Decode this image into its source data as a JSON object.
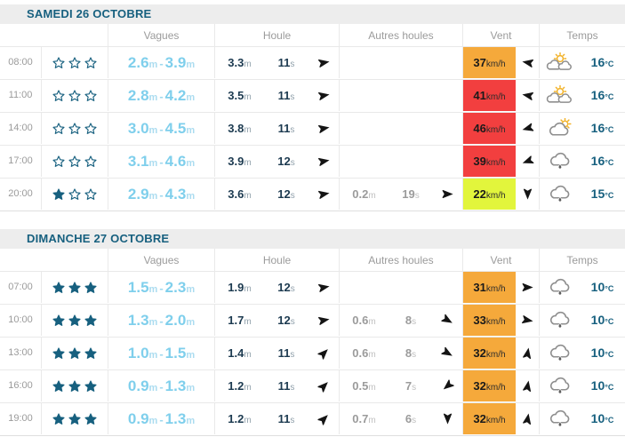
{
  "columns": {
    "vagues": "Vagues",
    "houle": "Houle",
    "autres_houles": "Autres houles",
    "vent": "Vent",
    "temps": "Temps"
  },
  "units": {
    "height": "m",
    "period": "s",
    "speed": "km/h",
    "temperature": "°C"
  },
  "colors": {
    "accent_teal": "#17607F",
    "wave_blue": "#7FCFEC",
    "vent_orange": "#F5A93B",
    "vent_red": "#F23F3F",
    "vent_yellow": "#E2F53C"
  },
  "stars_total": 3,
  "sections": [
    {
      "title": "SAMEDI 26 OCTOBRE",
      "rows": [
        {
          "time": "08:00",
          "stars_filled": 0,
          "vagues": {
            "min": "2.6",
            "max": "3.9"
          },
          "houle": {
            "height": "3.3",
            "period": "11",
            "direction_deg": 80
          },
          "autres_houles": null,
          "vent": {
            "speed": "37",
            "level": "orange",
            "direction_deg": 280
          },
          "temps": {
            "weather": "partly-sunny",
            "temperature": "16"
          }
        },
        {
          "time": "11:00",
          "stars_filled": 0,
          "vagues": {
            "min": "2.8",
            "max": "4.2"
          },
          "houle": {
            "height": "3.5",
            "period": "11",
            "direction_deg": 80
          },
          "autres_houles": null,
          "vent": {
            "speed": "41",
            "level": "red",
            "direction_deg": 280
          },
          "temps": {
            "weather": "partly-sunny",
            "temperature": "16"
          }
        },
        {
          "time": "14:00",
          "stars_filled": 0,
          "vagues": {
            "min": "3.0",
            "max": "4.5"
          },
          "houle": {
            "height": "3.8",
            "period": "11",
            "direction_deg": 80
          },
          "autres_houles": null,
          "vent": {
            "speed": "46",
            "level": "red",
            "direction_deg": 255
          },
          "temps": {
            "weather": "sun-behind-cloud",
            "temperature": "16"
          }
        },
        {
          "time": "17:00",
          "stars_filled": 0,
          "vagues": {
            "min": "3.1",
            "max": "4.6"
          },
          "houle": {
            "height": "3.9",
            "period": "12",
            "direction_deg": 80
          },
          "autres_houles": null,
          "vent": {
            "speed": "39",
            "level": "red",
            "direction_deg": 250
          },
          "temps": {
            "weather": "rain",
            "temperature": "16"
          }
        },
        {
          "time": "20:00",
          "stars_filled": 1,
          "vagues": {
            "min": "2.9",
            "max": "4.3"
          },
          "houle": {
            "height": "3.6",
            "period": "12",
            "direction_deg": 80
          },
          "autres_houles": {
            "height": "0.2",
            "period": "19",
            "direction_deg": 90
          },
          "vent": {
            "speed": "22",
            "level": "yellow",
            "direction_deg": 180
          },
          "temps": {
            "weather": "rain",
            "temperature": "15"
          }
        }
      ]
    },
    {
      "title": "DIMANCHE 27 OCTOBRE",
      "rows": [
        {
          "time": "07:00",
          "stars_filled": 3,
          "vagues": {
            "min": "1.5",
            "max": "2.3"
          },
          "houle": {
            "height": "1.9",
            "period": "12",
            "direction_deg": 80
          },
          "autres_houles": null,
          "vent": {
            "speed": "31",
            "level": "orange",
            "direction_deg": 90
          },
          "temps": {
            "weather": "rain",
            "temperature": "10"
          }
        },
        {
          "time": "10:00",
          "stars_filled": 3,
          "vagues": {
            "min": "1.3",
            "max": "2.0"
          },
          "houle": {
            "height": "1.7",
            "period": "12",
            "direction_deg": 80
          },
          "autres_houles": {
            "height": "0.6",
            "period": "8",
            "direction_deg": 120
          },
          "vent": {
            "speed": "33",
            "level": "orange",
            "direction_deg": 100
          },
          "temps": {
            "weather": "rain",
            "temperature": "10"
          }
        },
        {
          "time": "13:00",
          "stars_filled": 3,
          "vagues": {
            "min": "1.0",
            "max": "1.5"
          },
          "houle": {
            "height": "1.4",
            "period": "11",
            "direction_deg": 45
          },
          "autres_houles": {
            "height": "0.6",
            "period": "8",
            "direction_deg": 120
          },
          "vent": {
            "speed": "32",
            "level": "orange",
            "direction_deg": 10
          },
          "temps": {
            "weather": "rain",
            "temperature": "10"
          }
        },
        {
          "time": "16:00",
          "stars_filled": 3,
          "vagues": {
            "min": "0.9",
            "max": "1.3"
          },
          "houle": {
            "height": "1.2",
            "period": "11",
            "direction_deg": 45
          },
          "autres_houles": {
            "height": "0.5",
            "period": "7",
            "direction_deg": 230
          },
          "vent": {
            "speed": "32",
            "level": "orange",
            "direction_deg": 10
          },
          "temps": {
            "weather": "rain",
            "temperature": "10"
          }
        },
        {
          "time": "19:00",
          "stars_filled": 3,
          "vagues": {
            "min": "0.9",
            "max": "1.3"
          },
          "houle": {
            "height": "1.2",
            "period": "11",
            "direction_deg": 45
          },
          "autres_houles": {
            "height": "0.7",
            "period": "6",
            "direction_deg": 180
          },
          "vent": {
            "speed": "32",
            "level": "orange",
            "direction_deg": 10
          },
          "temps": {
            "weather": "rain",
            "temperature": "10"
          }
        }
      ]
    }
  ]
}
